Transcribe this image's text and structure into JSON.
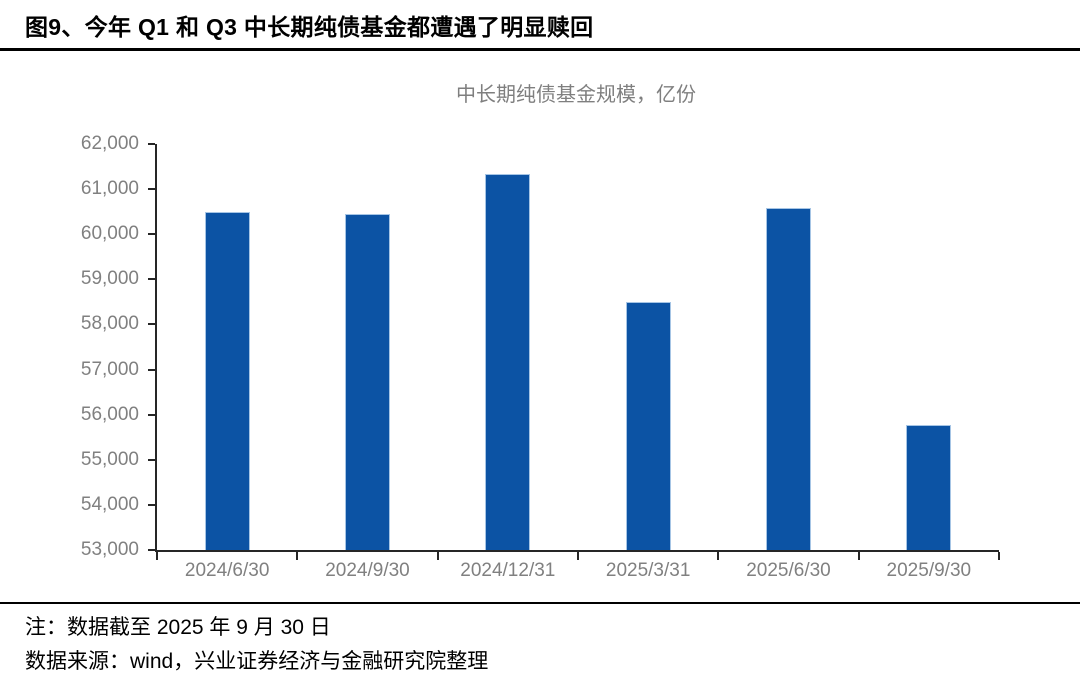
{
  "page": {
    "title": "图9、今年 Q1 和 Q3 中长期纯债基金都遭遇了明显赎回",
    "note": "注：数据截至 2025 年 9 月 30 日",
    "source": "数据来源：wind，兴业证券经济与金融研究院整理"
  },
  "chart_data": {
    "type": "bar",
    "title": "中长期纯债基金规模，亿份",
    "categories": [
      "2024/6/30",
      "2024/9/30",
      "2024/12/31",
      "2025/3/31",
      "2025/6/30",
      "2025/9/30"
    ],
    "values": [
      60480,
      60430,
      61310,
      58480,
      60560,
      55760
    ],
    "xlabel": "",
    "ylabel": "",
    "ylim": [
      53000,
      62000
    ],
    "ytick_step": 1000,
    "grid": false,
    "legend_position": "none",
    "bar_color": "#0C53A4",
    "bar_border_color": "#A6C5E5",
    "axis_color": "#262626",
    "tick_label_color": "#808080",
    "chart_title_color": "#7F7F7F"
  }
}
